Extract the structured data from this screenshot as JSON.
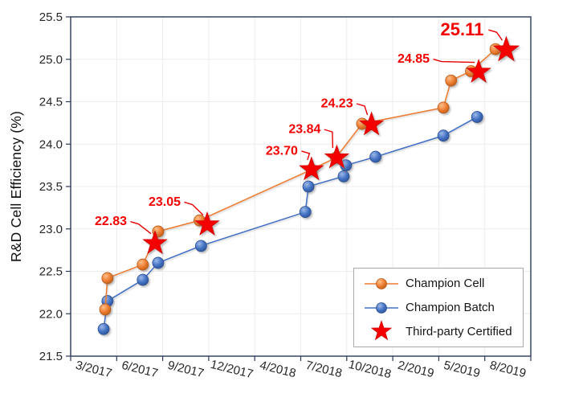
{
  "chart_data": {
    "type": "line",
    "title": "",
    "xlabel": "",
    "ylabel": "R&D Cell Efficiency (%)",
    "ylim": [
      21.5,
      25.5
    ],
    "yticks": [
      "21.5",
      "22.0",
      "22.5",
      "23.0",
      "23.5",
      "24.0",
      "24.5",
      "25.0",
      "25.5"
    ],
    "x_unit": "months since 3/2017",
    "xticks": [
      {
        "label": "3/2017",
        "m": 0
      },
      {
        "label": "6/2017",
        "m": 3
      },
      {
        "label": "9/2017",
        "m": 6
      },
      {
        "label": "12/2017",
        "m": 9
      },
      {
        "label": "4/2018",
        "m": 13
      },
      {
        "label": "7/2018",
        "m": 16
      },
      {
        "label": "10/2018",
        "m": 19
      },
      {
        "label": "2/2019",
        "m": 23
      },
      {
        "label": "5/2019",
        "m": 26
      },
      {
        "label": "8/2019",
        "m": 29
      }
    ],
    "grid": true,
    "legend_position": "inside-bottom-right",
    "series": [
      {
        "name": "Champion Cell",
        "type": "line",
        "marker": "circle",
        "color": "#ED7D31",
        "points": [
          [
            0.75,
            22.05
          ],
          [
            0.9,
            22.42
          ],
          [
            3.2,
            22.58
          ],
          [
            4.2,
            22.97
          ],
          [
            6.9,
            23.1
          ],
          [
            15.2,
            23.7
          ],
          [
            16.8,
            23.84
          ],
          [
            18.5,
            24.24
          ],
          [
            24.8,
            24.43
          ],
          [
            25.3,
            24.75
          ],
          [
            26.6,
            24.86
          ],
          [
            28.2,
            25.12
          ]
        ]
      },
      {
        "name": "Champion Batch",
        "type": "line",
        "marker": "circle",
        "color": "#4472C4",
        "points": [
          [
            0.65,
            21.82
          ],
          [
            0.9,
            22.15
          ],
          [
            3.2,
            22.4
          ],
          [
            4.2,
            22.6
          ],
          [
            7.0,
            22.8
          ],
          [
            14.8,
            23.2
          ],
          [
            15.0,
            23.5
          ],
          [
            17.3,
            23.62
          ],
          [
            17.45,
            23.75
          ],
          [
            19.5,
            23.85
          ],
          [
            24.8,
            24.1
          ],
          [
            27.0,
            24.32
          ]
        ]
      },
      {
        "name": "Third-party Certified",
        "type": "scatter",
        "marker": "star",
        "color": "#F40000",
        "points": [
          {
            "m": 4.0,
            "v": 22.83,
            "label": "22.83",
            "label_dx": -55,
            "label_dy": -28,
            "emphasis": false
          },
          {
            "m": 7.4,
            "v": 23.05,
            "label": "23.05",
            "label_dx": -53,
            "label_dy": -29,
            "emphasis": false
          },
          {
            "m": 15.2,
            "v": 23.7,
            "label": "23.70",
            "label_dx": -37,
            "label_dy": -24,
            "emphasis": false
          },
          {
            "m": 16.85,
            "v": 23.84,
            "label": "23.84",
            "label_dx": -40,
            "label_dy": -36,
            "emphasis": false
          },
          {
            "m": 19.15,
            "v": 24.23,
            "label": "24.23",
            "label_dx": -43,
            "label_dy": -27,
            "emphasis": false
          },
          {
            "m": 27.1,
            "v": 24.85,
            "label": "24.85",
            "label_dx": -81,
            "label_dy": -17,
            "emphasis": false
          },
          {
            "m": 28.9,
            "v": 25.11,
            "label": "25.11",
            "label_dx": -55,
            "label_dy": -26,
            "emphasis": true
          }
        ]
      }
    ],
    "colors": {
      "axis": "#2B3A55",
      "grid": "#ECECEC",
      "tick_text": "#262626",
      "annotation": "#F40000",
      "background": "#FFFFFF",
      "orange_marker_edge": "#B85C1C",
      "blue_marker_edge": "#2C5192"
    }
  }
}
